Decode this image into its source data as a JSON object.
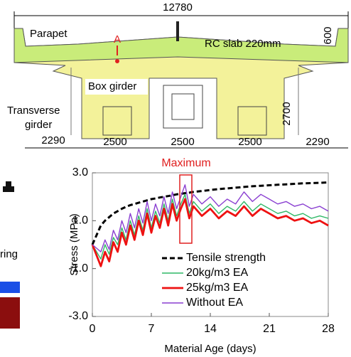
{
  "diagram": {
    "total_width": "12780",
    "parapet": "Parapet",
    "section_mark": "A",
    "slab": "RC slab 220mm",
    "parapet_height": "600",
    "box_girder": "Box girder",
    "transverse_girder": [
      "Transverse",
      "girder"
    ],
    "girder_height": "2700",
    "spans": [
      "2290",
      "2500",
      "2500",
      "2500",
      "2290"
    ]
  },
  "fragment_text": "ring",
  "chart_data": {
    "type": "line",
    "annotation": "Maximum",
    "xlabel": "Material Age (days)",
    "ylabel": "Stress (MPa)",
    "xlim": [
      0,
      28
    ],
    "xticks": [
      0,
      7,
      14,
      21,
      28
    ],
    "ylim": [
      -3,
      3
    ],
    "yticks": [
      {
        "value": -3,
        "label": "-3.0"
      },
      {
        "value": -1,
        "label": "-1.0"
      },
      {
        "value": 1,
        "label": "1.0"
      },
      {
        "value": 3,
        "label": "3.0"
      }
    ],
    "legend": "lower right",
    "x": [
      0,
      1,
      1.5,
      2,
      2.5,
      3,
      3.5,
      4,
      4.5,
      5,
      5.5,
      6,
      6.5,
      7,
      7.5,
      8,
      8.5,
      9,
      9.5,
      10,
      10.5,
      11,
      11.5,
      12,
      13,
      14,
      15,
      16,
      17,
      18,
      19,
      20,
      21,
      22,
      23,
      24,
      25,
      26,
      27,
      28
    ],
    "series": [
      {
        "name": "Tensile strength",
        "color": "#000000",
        "style": "dashed",
        "values": [
          0,
          0.8,
          1.0,
          1.15,
          1.3,
          1.4,
          1.5,
          1.58,
          1.65,
          1.7,
          1.75,
          1.8,
          1.85,
          1.9,
          1.93,
          1.97,
          2.0,
          2.03,
          2.06,
          2.1,
          2.12,
          2.15,
          2.17,
          2.2,
          2.24,
          2.28,
          2.32,
          2.35,
          2.38,
          2.41,
          2.44,
          2.46,
          2.48,
          2.5,
          2.52,
          2.54,
          2.56,
          2.57,
          2.58,
          2.6
        ]
      },
      {
        "name": "20kg/m3 EA",
        "color": "#2fb866",
        "style": "solid",
        "values": [
          0,
          -0.6,
          0.0,
          -0.4,
          0.3,
          0.0,
          0.7,
          0.2,
          1.0,
          0.4,
          1.2,
          0.6,
          1.5,
          0.7,
          1.4,
          0.9,
          1.7,
          1.0,
          1.9,
          1.2,
          1.7,
          2.1,
          1.3,
          1.8,
          1.4,
          1.7,
          1.3,
          1.6,
          1.4,
          1.8,
          1.4,
          1.7,
          1.5,
          1.3,
          1.4,
          1.2,
          1.3,
          1.1,
          1.2,
          1.1
        ]
      },
      {
        "name": "25kg/m3 EA",
        "color": "#ee1111",
        "style": "solid",
        "values": [
          0,
          -0.9,
          -0.3,
          -0.7,
          0.1,
          -0.3,
          0.5,
          0.0,
          0.8,
          0.2,
          1.0,
          0.4,
          1.3,
          0.5,
          1.2,
          0.7,
          1.5,
          0.8,
          1.7,
          1.0,
          1.5,
          1.9,
          1.1,
          1.6,
          1.2,
          1.5,
          1.1,
          1.4,
          1.2,
          1.6,
          1.2,
          1.5,
          1.3,
          1.1,
          1.2,
          1.0,
          1.1,
          0.9,
          1.0,
          0.8
        ]
      },
      {
        "name": "Without EA",
        "color": "#8a3fd1",
        "style": "solid",
        "values": [
          0,
          -0.3,
          0.2,
          -0.2,
          0.6,
          0.2,
          1.0,
          0.5,
          1.3,
          0.7,
          1.5,
          0.9,
          1.8,
          1.0,
          1.7,
          1.2,
          2.0,
          1.3,
          2.2,
          1.5,
          2.0,
          2.5,
          1.6,
          2.1,
          1.7,
          2.0,
          1.6,
          1.9,
          1.7,
          2.2,
          1.8,
          2.1,
          1.9,
          1.7,
          1.8,
          1.6,
          1.7,
          1.5,
          1.6,
          1.4
        ]
      }
    ]
  }
}
